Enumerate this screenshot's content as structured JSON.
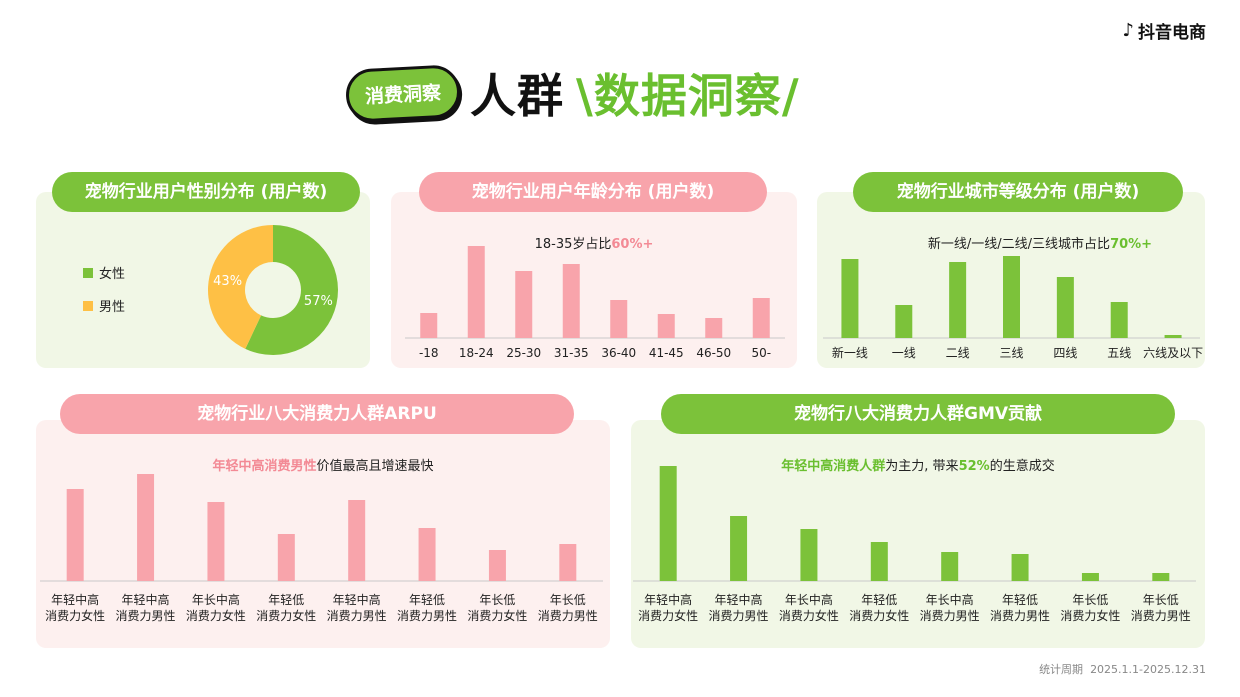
{
  "brand": {
    "name": "抖音电商"
  },
  "hero": {
    "pill": "消费洞察",
    "title_a": "人群",
    "title_b": "\\数据洞察/"
  },
  "colors": {
    "green": "#7cc23a",
    "pink": "#f8a4ab",
    "green_bg": "#f1f7e6",
    "pink_bg": "#fdf0ef"
  },
  "panels": {
    "gender": {
      "title": "宠物行业用户性别分布 (用户数)"
    },
    "age": {
      "title": "宠物行业用户年龄分布 (用户数)",
      "sub_prefix": "18-35岁占比",
      "sub_highlight": "60%+"
    },
    "city": {
      "title": "宠物行业城市等级分布 (用户数)",
      "sub_prefix": "新一线/一线/二线/三线城市占比",
      "sub_highlight": "70%+"
    },
    "arpu": {
      "title": "宠物行业八大消费力人群ARPU",
      "sub_highlight": "年轻中高消费男性",
      "sub_suffix": "价值最高且增速最快"
    },
    "gmv": {
      "title": "宠物行八大消费力人群GMV贡献",
      "sub_highlight1": "年轻中高消费人群",
      "sub_mid": "为主力, 带来",
      "sub_highlight2": "52%",
      "sub_suffix": "的生意成交"
    }
  },
  "footer": {
    "label": "统计周期",
    "range": "2025.1.1-2025.12.31"
  },
  "chart_data": [
    {
      "type": "pie",
      "title": "宠物行业用户性别分布 (用户数)",
      "categories": [
        "女性",
        "男性"
      ],
      "values": [
        57,
        43
      ],
      "labels": [
        "57%",
        "43%"
      ],
      "colors": [
        "#7cc23a",
        "#fec045"
      ],
      "legend": "left"
    },
    {
      "type": "bar",
      "title": "宠物行业用户年龄分布 (用户数)",
      "categories": [
        "-18",
        "18-24",
        "25-30",
        "31-35",
        "36-40",
        "41-45",
        "46-50",
        "50-"
      ],
      "values": [
        25,
        92,
        67,
        74,
        38,
        24,
        20,
        40
      ],
      "color": "#f8a4ab"
    },
    {
      "type": "bar",
      "title": "宠物行业城市等级分布 (用户数)",
      "categories": [
        "新一线",
        "一线",
        "二线",
        "三线",
        "四线",
        "五线",
        "六线及以下"
      ],
      "values": [
        79,
        33,
        76,
        82,
        61,
        36,
        3
      ],
      "color": "#7cc23a"
    },
    {
      "type": "bar",
      "title": "宠物行业八大消费力人群ARPU",
      "categories": [
        [
          "年轻中高",
          "消费力女性"
        ],
        [
          "年轻中高",
          "消费力男性"
        ],
        [
          "年长中高",
          "消费力女性"
        ],
        [
          "年轻低",
          "消费力女性"
        ],
        [
          "年轻中高",
          "消费力男性"
        ],
        [
          "年轻低",
          "消费力男性"
        ],
        [
          "年长低",
          "消费力女性"
        ],
        [
          "年长低",
          "消费力男性"
        ]
      ],
      "values": [
        92,
        107,
        79,
        47,
        81,
        53,
        31,
        37
      ],
      "color": "#f8a4ab"
    },
    {
      "type": "bar",
      "title": "宠物行八大消费力人群GMV贡献",
      "categories": [
        [
          "年轻中高",
          "消费力女性"
        ],
        [
          "年轻中高",
          "消费力男性"
        ],
        [
          "年长中高",
          "消费力女性"
        ],
        [
          "年轻低",
          "消费力女性"
        ],
        [
          "年长中高",
          "消费力男性"
        ],
        [
          "年轻低",
          "消费力男性"
        ],
        [
          "年长低",
          "消费力女性"
        ],
        [
          "年长低",
          "消费力男性"
        ]
      ],
      "values": [
        115,
        65,
        52,
        39,
        29,
        27,
        8,
        8
      ],
      "color": "#7cc23a"
    }
  ]
}
